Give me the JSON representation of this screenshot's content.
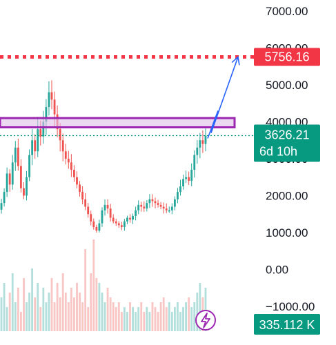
{
  "chart_data": {
    "type": "candlestick",
    "y_axis": {
      "ticks": [
        "7000.00",
        "6000.00",
        "5000.00",
        "4000.00",
        "3000.00",
        "2000.00",
        "1000.00",
        "0.00",
        "−1000.00"
      ],
      "tick_values": [
        7000,
        6000,
        5000,
        4000,
        3000,
        2000,
        1000,
        0,
        -1000
      ],
      "ylim": [
        -1500,
        7300
      ]
    },
    "price_series_close": [
      1800,
      2100,
      2600,
      2300,
      2900,
      3300,
      2800,
      2200,
      2000,
      2500,
      3100,
      3500,
      3200,
      3800,
      3600,
      4000,
      4400,
      4800,
      4600,
      4200,
      3800,
      3500,
      3200,
      3000,
      2900,
      2700,
      2500,
      2300,
      2100,
      1900,
      1700,
      1500,
      1300,
      1150,
      1050,
      1250,
      1600,
      1750,
      1650,
      1400,
      1300,
      1250,
      1200,
      1150,
      1300,
      1400,
      1350,
      1450,
      1600,
      1750,
      1700,
      1650,
      1800,
      1900,
      1850,
      1800,
      1750,
      1700,
      1650,
      1600,
      1600,
      1700,
      1900,
      2100,
      2250,
      2450,
      2500,
      2400,
      2700,
      3100,
      3300,
      3500,
      3400,
      3626
    ],
    "volume_series": [
      0.35,
      0.5,
      0.25,
      0.4,
      0.6,
      0.3,
      0.45,
      0.2,
      0.55,
      0.3,
      0.4,
      0.65,
      0.35,
      0.5,
      0.25,
      0.45,
      0.3,
      0.4,
      0.55,
      0.3,
      0.5,
      0.35,
      0.6,
      0.4,
      0.3,
      0.45,
      0.35,
      0.5,
      0.4,
      0.3,
      0.85,
      0.25,
      0.6,
      0.95,
      0.55,
      0.5,
      0.4,
      0.3,
      0.45,
      0.35,
      0.3,
      0.25,
      0.3,
      0.2,
      0.25,
      0.2,
      0.3,
      0.25,
      0.2,
      0.25,
      0.3,
      0.2,
      0.25,
      0.2,
      0.3,
      0.25,
      0.2,
      0.3,
      0.35,
      0.25,
      0.3,
      0.2,
      0.25,
      0.3,
      0.2,
      0.25,
      0.3,
      0.35,
      0.25,
      0.3,
      0.4,
      0.5,
      0.35,
      0.45
    ],
    "current_price": 3626.21,
    "current_price_label": "3626.21",
    "countdown_label": "6d 10h",
    "target_price": 5756.16,
    "target_price_label": "5756.16",
    "resistance_zone": [
      3850,
      4100
    ],
    "projection_path": [
      {
        "x": 301,
        "y": 3550
      },
      {
        "x": 316,
        "y": 4300
      },
      {
        "x": 306,
        "y": 3700
      },
      {
        "x": 345,
        "y": 5756
      }
    ],
    "volume_label": "335.112 K",
    "colors": {
      "up": "#26a69a",
      "down": "#ef5350",
      "target": "#f23645",
      "current": "#089981",
      "zone_fill": "#e1bee7",
      "zone_border": "#9c27b0",
      "projection": "#2962ff",
      "volume_up": "#b2dfdb",
      "volume_down": "#f8c6c4",
      "badge": "#9c27b0"
    }
  }
}
